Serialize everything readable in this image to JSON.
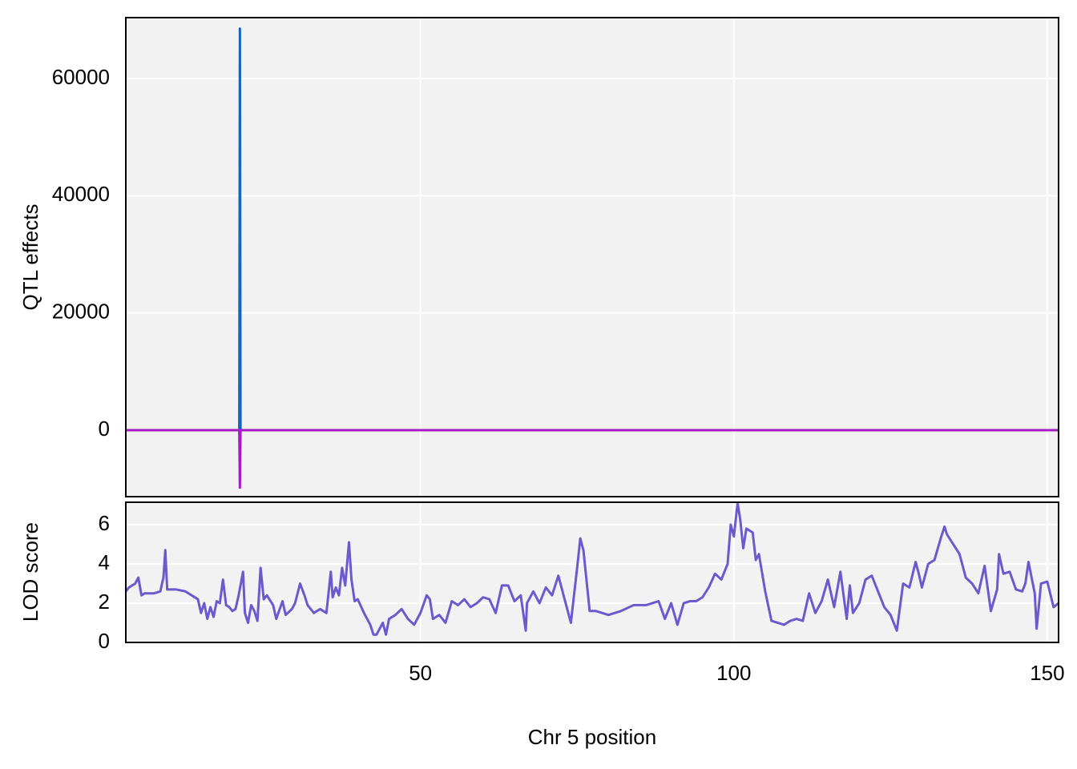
{
  "chart_data": [
    {
      "type": "line",
      "ylabel": "QTL effects",
      "x": [
        3,
        21.1,
        21.2,
        21.3,
        151.8
      ],
      "series": [
        {
          "color": "#1565c0",
          "values": [
            0,
            0,
            68500,
            0,
            0
          ]
        },
        {
          "color": "#a61cc4",
          "values": [
            0,
            0,
            -9800,
            0,
            0
          ]
        }
      ],
      "xlim": [
        3,
        151.8
      ],
      "ylim": [
        -11343,
        70387
      ],
      "xticks": [
        50,
        100,
        150
      ],
      "yticks": [
        0,
        20000,
        40000,
        60000
      ],
      "grid": true
    },
    {
      "type": "line",
      "xlabel": "Chr 5 position",
      "ylabel": "LOD score",
      "x": [
        3,
        3.5,
        4.5,
        5,
        5.5,
        6,
        7.5,
        8.5,
        9,
        9.3,
        9.6,
        11,
        12.5,
        13.5,
        14.5,
        15,
        15.5,
        16,
        16.5,
        17,
        17.5,
        18,
        18.5,
        19,
        19.5,
        20,
        20.5,
        21,
        21.7,
        22,
        22.5,
        23,
        23.5,
        24,
        24.5,
        25,
        25.5,
        26.5,
        27,
        28,
        28.5,
        29.5,
        30,
        30.8,
        31.5,
        32,
        33,
        34,
        35,
        35.7,
        36,
        36.5,
        37,
        37.5,
        38,
        38.6,
        39,
        39.5,
        40,
        41,
        42,
        42.5,
        43,
        44,
        44.5,
        45,
        46,
        47,
        48,
        49,
        50,
        51,
        51.5,
        52,
        53,
        54,
        55,
        56,
        57,
        58,
        59,
        60,
        61,
        62,
        63,
        64,
        65,
        66,
        66.8,
        67,
        68,
        69,
        70,
        71,
        72,
        73,
        74,
        75,
        75.5,
        76,
        77,
        78,
        80,
        82,
        84,
        86,
        87,
        88,
        89,
        90,
        91,
        92,
        93,
        94,
        95,
        96,
        97,
        98,
        99,
        99.5,
        100,
        100.6,
        101,
        101.5,
        102,
        103,
        103.5,
        104,
        105,
        106,
        107,
        108,
        109,
        110,
        111,
        112,
        113,
        114,
        115,
        116,
        117,
        118,
        118.5,
        119,
        120,
        121,
        122,
        123,
        124,
        125,
        126,
        127,
        128,
        129,
        129.5,
        130,
        131,
        132,
        133,
        133.6,
        134,
        135,
        136,
        137,
        138,
        139,
        140,
        141,
        142,
        142.3,
        143,
        144,
        145,
        146,
        146.5,
        147,
        148,
        148.3,
        149,
        150,
        151,
        151.8
      ],
      "series": [
        {
          "color": "#6a5acd",
          "values": [
            2.6,
            2.8,
            3.0,
            3.3,
            2.4,
            2.5,
            2.5,
            2.6,
            3.3,
            4.7,
            2.7,
            2.7,
            2.6,
            2.4,
            2.2,
            1.5,
            2.0,
            1.2,
            1.8,
            1.3,
            2.1,
            2.0,
            3.2,
            1.9,
            1.8,
            1.6,
            1.7,
            2.4,
            3.6,
            1.5,
            1.0,
            1.9,
            1.6,
            1.1,
            3.8,
            2.2,
            2.4,
            1.9,
            1.2,
            2.1,
            1.4,
            1.7,
            2.0,
            3.0,
            2.4,
            1.9,
            1.5,
            1.7,
            1.5,
            3.6,
            2.3,
            2.8,
            2.4,
            3.8,
            2.9,
            5.1,
            3.2,
            2.1,
            2.2,
            1.5,
            0.9,
            0.4,
            0.4,
            1.0,
            0.4,
            1.2,
            1.4,
            1.7,
            1.2,
            0.9,
            1.5,
            2.4,
            2.2,
            1.2,
            1.4,
            1.0,
            2.1,
            1.9,
            2.2,
            1.8,
            2.0,
            2.3,
            2.2,
            1.5,
            2.9,
            2.9,
            2.1,
            2.4,
            0.6,
            2.0,
            2.6,
            2.0,
            2.8,
            2.4,
            3.4,
            2.2,
            1.0,
            3.8,
            5.3,
            4.7,
            1.6,
            1.6,
            1.4,
            1.6,
            1.9,
            1.9,
            2.0,
            2.1,
            1.2,
            2.0,
            0.9,
            2.0,
            2.1,
            2.1,
            2.3,
            2.8,
            3.5,
            3.2,
            4.0,
            6.0,
            5.4,
            7.1,
            6.3,
            4.8,
            5.8,
            5.6,
            4.2,
            4.5,
            2.6,
            1.1,
            1.0,
            0.9,
            1.1,
            1.2,
            1.1,
            2.5,
            1.5,
            2.1,
            3.2,
            1.8,
            3.6,
            1.2,
            2.9,
            1.5,
            2.0,
            3.2,
            3.4,
            2.6,
            1.8,
            1.4,
            0.6,
            3.0,
            2.8,
            4.1,
            3.5,
            2.8,
            4.0,
            4.2,
            5.3,
            5.9,
            5.5,
            5.0,
            4.5,
            3.3,
            3.0,
            2.5,
            3.9,
            1.6,
            2.7,
            4.5,
            3.5,
            3.6,
            2.7,
            2.6,
            3.0,
            4.1,
            2.5,
            0.7,
            3.0,
            3.1,
            1.8,
            2.0
          ]
        }
      ],
      "xlim": [
        3,
        151.8
      ],
      "ylim": [
        0,
        7.14
      ],
      "xticks": [
        50,
        100,
        150
      ],
      "yticks": [
        0,
        2,
        4,
        6
      ],
      "grid": true
    }
  ]
}
